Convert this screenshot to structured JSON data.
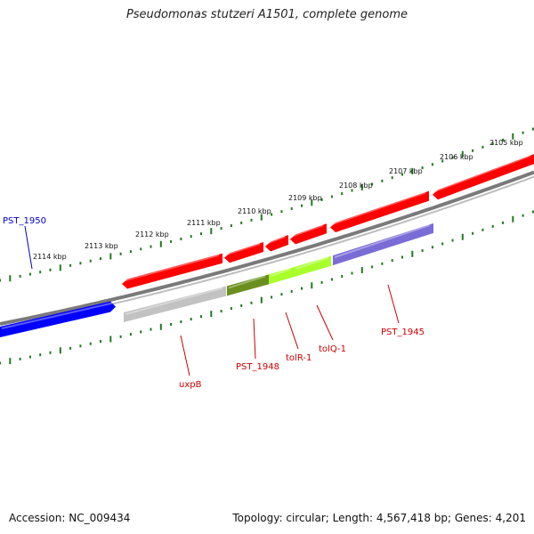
{
  "title": "Pseudomonas stutzeri A1501, complete genome",
  "footer": {
    "accession": "Accession: NC_009434",
    "topology": "Topology: circular; Length: 4,567,418 bp; Genes: 4,201"
  },
  "scale": {
    "ticks": [
      "2105 kbp",
      "2106 kbp",
      "2107 kbp",
      "2108 kbp",
      "2109 kbp",
      "2110 kbp",
      "2111 kbp",
      "2112 kbp",
      "2113 kbp",
      "2114 kbp"
    ]
  },
  "colors": {
    "backbone": "#7a7a7a",
    "tick": "#1f7a1f",
    "forward_gene": "#ff0000",
    "reverse_gene": "#ff5555",
    "blue_gene": "#0000ff",
    "gray_gene": "#c2c2c2",
    "olive_gene": "#6b8f1f",
    "lime_gene": "#a8ff2a",
    "purple_gene": "#7a6cd6",
    "label_red": "#cc0000",
    "label_blue": "#0000cc"
  },
  "genes": [
    {
      "name": "PST_1950",
      "color": "#0000cc"
    },
    {
      "name": "uxpB",
      "color": "#cc0000"
    },
    {
      "name": "PST_1948",
      "color": "#cc0000"
    },
    {
      "name": "tolR-1",
      "color": "#cc0000"
    },
    {
      "name": "tolQ-1",
      "color": "#cc0000"
    },
    {
      "name": "PST_1945",
      "color": "#cc0000"
    }
  ]
}
